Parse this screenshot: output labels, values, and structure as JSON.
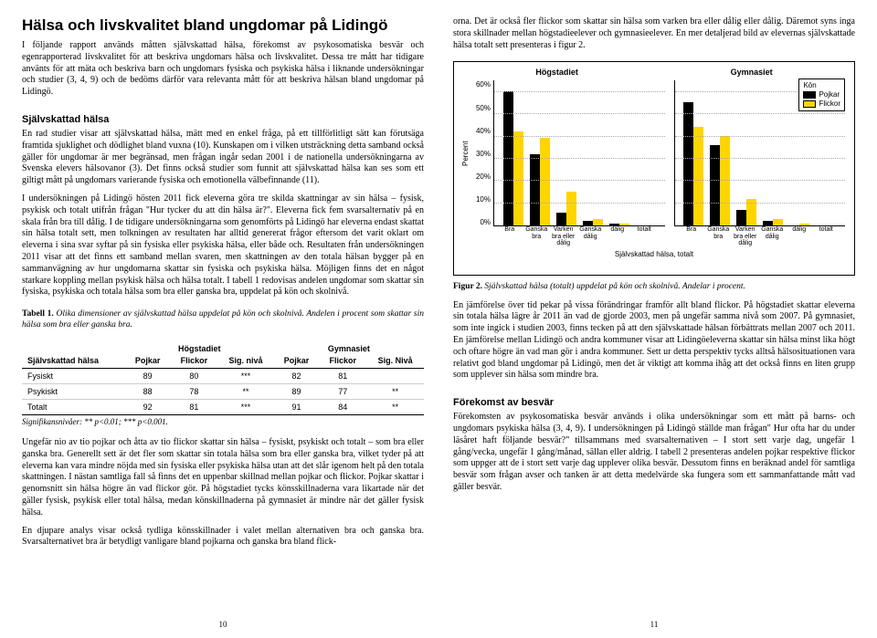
{
  "left": {
    "h1": "Hälsa och livskvalitet bland ungdomar på Lidingö",
    "p1": "I följande rapport används måtten självskattad hälsa, förekomst av psykosomatiska besvär och egenrapporterad livskvalitet för att beskriva ungdomars hälsa och livskvalitet. Dessa tre mått har tidigare använts för att mäta och beskriva barn och ungdomars fysiska och psykiska hälsa i liknande undersökningar och studier (3, 4, 9) och de bedöms därför vara relevanta mått för att beskriva hälsan bland ungdomar på Lidingö.",
    "h2a": "Självskattad hälsa",
    "p2": "En rad studier visar att självskattad hälsa, mätt med en enkel fråga, på ett tillförlitligt sätt kan förutsäga framtida sjuklighet och dödlighet bland vuxna (10). Kunskapen om i vilken utsträckning detta samband också gäller för ungdomar är mer begränsad, men frågan ingår sedan 2001 i de nationella undersökningarna av Svenska elevers hälsovanor (3). Det finns också studier som funnit att självskattad hälsa kan ses som ett giltigt mått på ungdomars varierande fysiska och emotionella välbefinnande (11).",
    "p3": "I undersökningen på Lidingö hösten 2011 fick eleverna göra tre skilda skattningar av sin hälsa – fysisk, psykisk och totalt utifrån frågan \"Hur tycker du att din hälsa är?\". Eleverna fick fem svarsalternativ på en skala från bra till dålig. I de tidigare undersökningarna som genomförts på Lidingö har eleverna endast skattat sin hälsa totalt sett, men tolkningen av resultaten har alltid genererat frågor eftersom det varit oklart om eleverna i sina svar syftar på sin fysiska eller psykiska hälsa, eller både och. Resultaten från undersökningen 2011 visar att det finns ett samband mellan svaren, men skattningen av den totala hälsan bygger på en sammanvägning av hur ungdomarna skattar sin fysiska och psykiska hälsa. Möjligen finns det en något starkare koppling mellan psykisk hälsa och hälsa totalt. I tabell 1 redovisas andelen ungdomar som skattar sin fysiska, psykiska och totala hälsa som bra eller ganska bra, uppdelat på kön och skolnivå.",
    "tab1_caption_strong": "Tabell 1.",
    "tab1_caption_rest": " Olika dimensioner av självskattad hälsa uppdelat på kön och skolnivå. Andelen i procent som skattar sin hälsa som bra eller ganska bra.",
    "table": {
      "group1": "Högstadiet",
      "group2": "Gymnasiet",
      "col0": "Självskattad hälsa",
      "cols": [
        "Pojkar",
        "Flickor",
        "Sig. nivå",
        "Pojkar",
        "Flickor",
        "Sig. Nivå"
      ],
      "rows": [
        {
          "label": "Fysiskt",
          "v": [
            "89",
            "80",
            "***",
            "82",
            "81",
            ""
          ]
        },
        {
          "label": "Psykiskt",
          "v": [
            "88",
            "78",
            "**",
            "89",
            "77",
            "**"
          ]
        },
        {
          "label": "Totalt",
          "v": [
            "92",
            "81",
            "***",
            "91",
            "84",
            "**"
          ]
        }
      ]
    },
    "signote": "Signifikansnivåer: ** p<0.01; *** p<0.001.",
    "p4": "Ungefär nio av tio pojkar och åtta av tio flickor skattar sin hälsa – fysiskt, psykiskt och totalt – som bra eller ganska bra. Generellt sett är det fler som skattar sin totala hälsa som bra eller ganska bra, vilket tyder på att eleverna kan vara mindre nöjda med sin fysiska eller psykiska hälsa utan att det slår igenom helt på den totala skattningen. I nästan samtliga fall så finns det en uppenbar skillnad mellan pojkar och flickor. Pojkar skattar i genomsnitt sin hälsa högre än vad flickor gör. På högstadiet tycks könsskillnaderna vara likartade när det gäller fysisk, psykisk eller total hälsa, medan könskillnaderna på gymnasiet är mindre när det gäller fysisk hälsa.",
    "p5": "En djupare analys visar också tydliga könsskillnader i valet mellan alternativen bra och ganska bra. Svarsalternativet bra är betydligt vanligare bland pojkarna och ganska bra bland flick-",
    "pagenum": "10"
  },
  "right": {
    "p1": "orna. Det är också fler flickor som skattar sin hälsa som varken bra eller dålig eller dålig. Däremot syns inga stora skillnader mellan högstadieelever och gymnasieelever. En mer detaljerad bild av elevernas självskattade hälsa totalt sett presenteras i figur 2.",
    "fig2_caption_strong": "Figur 2.",
    "fig2_caption_rest": " Självskattad hälsa (totalt) uppdelat på kön och skolnivå. Andelar i procent.",
    "p2": "En jämförelse över tid pekar på vissa förändringar framför allt bland flickor. På högstadiet skattar eleverna sin totala hälsa lägre år 2011 än vad de gjorde 2003, men på ungefär samma nivå som 2007. På gymnasiet, som inte ingick i studien 2003, finns tecken på att den självskattade hälsan förbättrats mellan 2007 och 2011. En jämförelse mellan Lidingö och andra kommuner visar att Lidingöeleverna skattar sin hälsa minst lika högt och oftare högre än vad man gör i andra kommuner. Sett ur detta perspektiv tycks alltså hälsosituationen vara relativt god bland ungdomar på Lidingö, men det är viktigt att komma ihåg att det också finns en liten grupp som upplever sin hälsa som mindre bra.",
    "h2b": "Förekomst av besvär",
    "p3": "Förekomsten av psykosomatiska besvär används i olika undersökningar som ett mått på barns- och ungdomars psykiska hälsa (3, 4, 9). I undersökningen på Lidingö ställde man frågan\" Hur ofta har du under läsåret haft följande besvär?\" tillsammans med svarsalternativen – I stort sett varje dag, ungefär 1 gång/vecka, ungefär 1 gång/månad, sällan eller aldrig. I tabell 2 presenteras andelen pojkar respektive flickor som uppger att de i stort sett varje dag upplever olika besvär. Dessutom finns en beräknad andel för samtliga besvär som frågan avser och tanken är att detta medelvärde ska fungera som ett sammanfattande mått vad gäller besvär.",
    "pagenum": "11"
  },
  "chart": {
    "panel_titles": [
      "Högstadiet",
      "Gymnasiet"
    ],
    "ylabel": "Percent",
    "yticks": [
      "60%",
      "50%",
      "40%",
      "30%",
      "20%",
      "10%",
      "0%"
    ],
    "ymax": 65,
    "categories": [
      "Bra",
      "Gan-ska bra",
      "Varken bra eller dålig",
      "Gan-ska dålig",
      "dålig",
      "totalt"
    ],
    "xlabel": "Självskattad hälsa, totalt",
    "legend_title": "Kön",
    "legend": [
      {
        "label": "Pojkar",
        "color": "#000000"
      },
      {
        "label": "Flickor",
        "color": "#ffd500"
      }
    ],
    "colors": {
      "pojkar": "#000000",
      "flickor": "#ffd500"
    },
    "data": {
      "hogstadiet": {
        "pojkar": [
          60,
          32,
          6,
          2,
          1,
          0
        ],
        "flickor": [
          42,
          39,
          15,
          3,
          1,
          0
        ]
      },
      "gymnasiet": {
        "pojkar": [
          55,
          36,
          7,
          2,
          0,
          0
        ],
        "flickor": [
          44,
          40,
          12,
          3,
          1,
          0
        ]
      }
    }
  }
}
